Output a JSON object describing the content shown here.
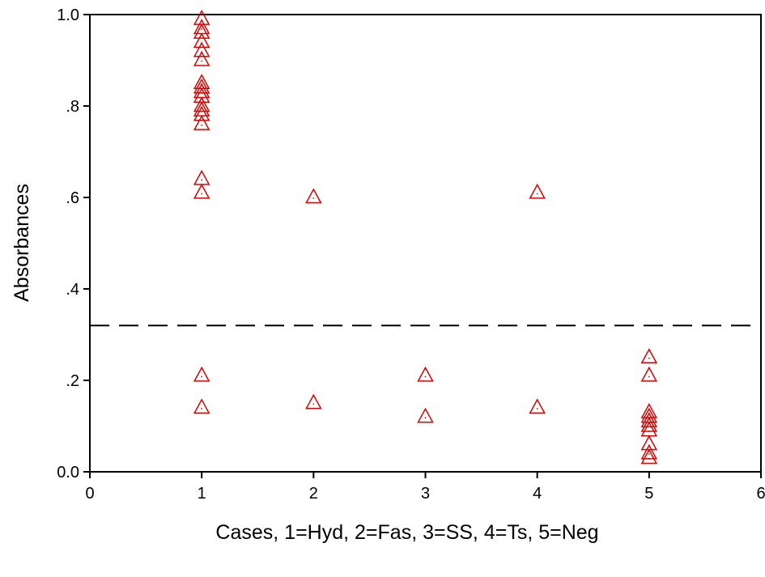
{
  "chart_data": {
    "type": "scatter",
    "title": "",
    "xlabel": "Cases, 1=Hyd, 2=Fas, 3=SS, 4=Ts, 5=Neg",
    "ylabel": "Absorbances",
    "xlim": [
      0,
      6
    ],
    "ylim": [
      0.0,
      1.0
    ],
    "x_ticks": [
      0,
      1,
      2,
      3,
      4,
      5,
      6
    ],
    "x_tick_labels": [
      "0",
      "1",
      "2",
      "3",
      "4",
      "5",
      "6"
    ],
    "y_ticks": [
      0.0,
      0.2,
      0.4,
      0.6,
      0.8,
      1.0
    ],
    "y_tick_labels": [
      "0.0",
      ".2",
      ".4",
      ".6",
      ".8",
      "1.0"
    ],
    "grid": false,
    "legend": "none",
    "marker": "open-triangle",
    "marker_color": "#e00000",
    "cutoff_line": {
      "y": 0.32,
      "style": "dashed",
      "color": "#000000"
    },
    "points": [
      {
        "x": 1,
        "y": 0.99
      },
      {
        "x": 1,
        "y": 0.97
      },
      {
        "x": 1,
        "y": 0.96
      },
      {
        "x": 1,
        "y": 0.94
      },
      {
        "x": 1,
        "y": 0.92
      },
      {
        "x": 1,
        "y": 0.9
      },
      {
        "x": 1,
        "y": 0.85
      },
      {
        "x": 1,
        "y": 0.84
      },
      {
        "x": 1,
        "y": 0.83
      },
      {
        "x": 1,
        "y": 0.82
      },
      {
        "x": 1,
        "y": 0.8
      },
      {
        "x": 1,
        "y": 0.79
      },
      {
        "x": 1,
        "y": 0.78
      },
      {
        "x": 1,
        "y": 0.76
      },
      {
        "x": 1,
        "y": 0.64
      },
      {
        "x": 1,
        "y": 0.61
      },
      {
        "x": 1,
        "y": 0.21
      },
      {
        "x": 1,
        "y": 0.14
      },
      {
        "x": 2,
        "y": 0.6
      },
      {
        "x": 2,
        "y": 0.15
      },
      {
        "x": 3,
        "y": 0.21
      },
      {
        "x": 3,
        "y": 0.12
      },
      {
        "x": 4,
        "y": 0.61
      },
      {
        "x": 4,
        "y": 0.14
      },
      {
        "x": 5,
        "y": 0.25
      },
      {
        "x": 5,
        "y": 0.21
      },
      {
        "x": 5,
        "y": 0.13
      },
      {
        "x": 5,
        "y": 0.12
      },
      {
        "x": 5,
        "y": 0.11
      },
      {
        "x": 5,
        "y": 0.1
      },
      {
        "x": 5,
        "y": 0.09
      },
      {
        "x": 5,
        "y": 0.06
      },
      {
        "x": 5,
        "y": 0.04
      },
      {
        "x": 5,
        "y": 0.03
      }
    ]
  }
}
